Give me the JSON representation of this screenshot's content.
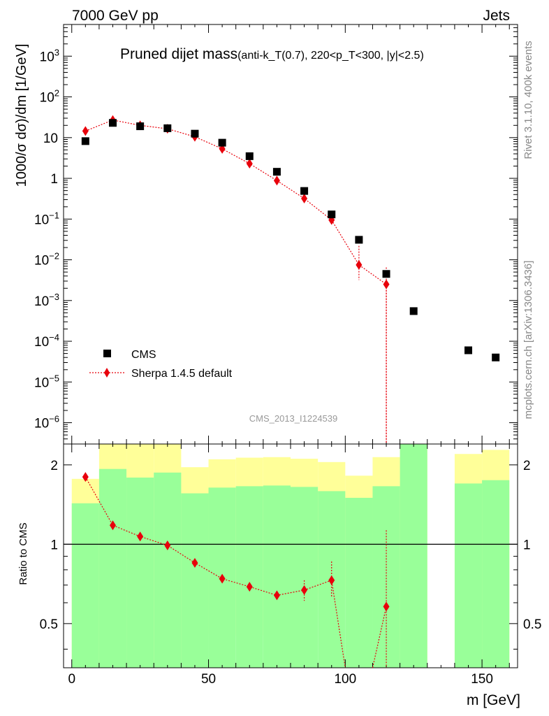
{
  "header": {
    "left": "7000 GeV pp",
    "right": "Jets"
  },
  "side_labels": {
    "rivet": "Rivet 3.1.10,  400k events",
    "mcplots": "mcplots.cern.ch [arXiv:1306.3436]"
  },
  "chart_data": [
    {
      "type": "scatter",
      "panel": "main",
      "title": "Pruned dijet mass",
      "title_params": "(anti-k_T(0.7), 220<p_T<300, |y|<2.5)",
      "watermark": "CMS_2013_I1224539",
      "ylabel": "1000/σ dσ)/dm [1/GeV]",
      "yscale": "log",
      "ylim": [
        3e-07,
        6000
      ],
      "xlim": [
        -3,
        163
      ],
      "y_ticks": [
        {
          "value": 1e-06,
          "label": "10",
          "exp": "−6"
        },
        {
          "value": 1e-05,
          "label": "10",
          "exp": "−5"
        },
        {
          "value": 0.0001,
          "label": "10",
          "exp": "−4"
        },
        {
          "value": 0.001,
          "label": "10",
          "exp": "−3"
        },
        {
          "value": 0.01,
          "label": "10",
          "exp": "−2"
        },
        {
          "value": 0.1,
          "label": "10",
          "exp": "−1"
        },
        {
          "value": 1,
          "label": "1",
          "exp": ""
        },
        {
          "value": 10,
          "label": "10",
          "exp": ""
        },
        {
          "value": 100,
          "label": "10",
          "exp": "2"
        },
        {
          "value": 1000,
          "label": "10",
          "exp": "3"
        }
      ],
      "legend": [
        {
          "name": "CMS",
          "marker": "square",
          "color": "#000000"
        },
        {
          "name": "Sherpa 1.4.5 default",
          "marker": "diamond",
          "color": "#e8000b"
        }
      ],
      "series": [
        {
          "name": "CMS",
          "x": [
            5,
            15,
            25,
            35,
            45,
            55,
            65,
            75,
            85,
            95,
            105,
            115,
            125,
            145,
            155
          ],
          "y": [
            8.2,
            23,
            19,
            17,
            12.5,
            7.5,
            3.5,
            1.45,
            0.49,
            0.13,
            0.031,
            0.0045,
            0.00055,
            6e-05,
            4e-05
          ]
        },
        {
          "name": "Sherpa 1.4.5 default",
          "x": [
            5,
            15,
            25,
            35,
            45,
            55,
            65,
            75,
            85,
            95,
            105,
            115
          ],
          "y": [
            14.5,
            27,
            20,
            16.5,
            10.5,
            5.3,
            2.3,
            0.88,
            0.32,
            0.095,
            0.0075,
            0.0025
          ],
          "err_up": [
            0,
            0,
            0,
            0,
            0,
            0,
            0,
            0,
            0,
            0,
            0.0145,
            0.004
          ],
          "err_down": [
            0,
            0,
            0,
            0,
            0,
            0,
            0,
            0,
            0,
            0,
            0.0043,
            0.0025
          ],
          "drop_to_floor_at": 115
        }
      ]
    },
    {
      "type": "scatter",
      "panel": "ratio",
      "ylabel": "Ratio to CMS",
      "xlabel": "m [GeV]",
      "yscale": "log",
      "ylim": [
        0.34,
        2.4
      ],
      "xlim": [
        -3,
        163
      ],
      "reference_line": 1,
      "y_ticks": [
        {
          "value": 0.5,
          "label": "0.5"
        },
        {
          "value": 1,
          "label": "1"
        },
        {
          "value": 2,
          "label": "2"
        }
      ],
      "x_ticks": [
        {
          "value": 0,
          "label": "0"
        },
        {
          "value": 50,
          "label": "50"
        },
        {
          "value": 100,
          "label": "100"
        },
        {
          "value": 150,
          "label": "150"
        }
      ],
      "bands": {
        "edges": [
          [
            0,
            10
          ],
          [
            10,
            20
          ],
          [
            20,
            30
          ],
          [
            30,
            40
          ],
          [
            40,
            50
          ],
          [
            50,
            60
          ],
          [
            60,
            70
          ],
          [
            70,
            80
          ],
          [
            80,
            90
          ],
          [
            90,
            100
          ],
          [
            100,
            110
          ],
          [
            110,
            120
          ],
          [
            120,
            130
          ],
          [
            140,
            150
          ],
          [
            150,
            160
          ]
        ],
        "green_low": [
          0.3,
          0.3,
          0.3,
          0.3,
          0.3,
          0.3,
          0.3,
          0.3,
          0.3,
          0.3,
          0.3,
          0.3,
          0.3,
          0.3,
          0.3
        ],
        "green_high": [
          1.43,
          1.93,
          1.79,
          1.87,
          1.56,
          1.64,
          1.66,
          1.67,
          1.65,
          1.59,
          1.5,
          1.66,
          3.0,
          1.7,
          1.75
        ],
        "yellow_low": [
          0.3,
          0.3,
          0.3,
          0.3,
          0.57,
          0.46,
          0.45,
          0.54,
          0.61,
          0.65,
          0.72,
          0.7,
          0.3,
          0.3,
          0.3
        ],
        "yellow_high": [
          1.77,
          3.0,
          3.0,
          3.0,
          1.96,
          2.1,
          2.13,
          2.14,
          2.11,
          2.05,
          1.82,
          2.14,
          3.0,
          2.2,
          2.28
        ],
        "yellow_color": "#ffff99",
        "green_color": "#99ff99"
      },
      "series": [
        {
          "name": "Sherpa 1.4.5 default / CMS",
          "x": [
            5,
            15,
            25,
            35,
            45,
            55,
            65,
            75,
            85,
            95,
            115
          ],
          "y": [
            1.8,
            1.18,
            1.07,
            0.99,
            0.85,
            0.74,
            0.69,
            0.64,
            0.67,
            0.73,
            0.58
          ],
          "err_up": [
            0,
            0,
            0,
            0,
            0,
            0,
            0,
            0,
            0.06,
            0.13,
            0.55
          ],
          "err_down": [
            0,
            0,
            0,
            0,
            0,
            0,
            0,
            0,
            0.06,
            0.1,
            0.24
          ],
          "color": "#e8000b"
        }
      ]
    }
  ]
}
